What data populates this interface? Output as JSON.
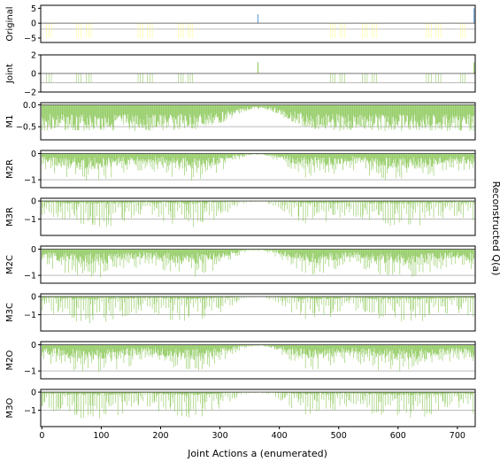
{
  "figure": {
    "xlabel": "Joint Actions a (enumerated)",
    "ylabel": "Reconstructed Q(a)",
    "xlim": [
      -2,
      730
    ],
    "xticks": [
      0,
      100,
      200,
      300,
      400,
      500,
      600,
      700
    ]
  },
  "colors": {
    "green": "#8cc85a",
    "yellow": "#ffff88",
    "blue": "#5b9bd5",
    "axis_line": "#bbbbbb"
  },
  "chart_data": [
    {
      "type": "bar",
      "ylabel": "Original",
      "ylim": [
        -6.5,
        6
      ],
      "yticks": [
        5,
        0,
        -5
      ],
      "reference_line": -2,
      "bar_color": "yellow",
      "baseline_value": 0,
      "low_value": -5,
      "low_action_groups": [
        [
          8,
          12,
          16
        ],
        [
          58,
          62,
          66
        ],
        [
          75,
          79,
          83
        ],
        [
          162,
          166,
          170
        ],
        [
          178,
          182,
          186
        ],
        [
          230,
          234,
          238
        ],
        [
          246,
          250,
          254
        ],
        [
          486,
          490,
          494
        ],
        [
          502,
          506,
          510
        ],
        [
          540,
          544,
          548
        ],
        [
          556,
          560,
          564
        ],
        [
          648,
          652,
          656
        ],
        [
          664,
          668,
          672
        ],
        [
          705,
          709,
          713
        ]
      ],
      "spikes": [
        {
          "x": 364,
          "value": 3,
          "color": "blue"
        },
        {
          "x": 728,
          "value": 5,
          "color": "blue"
        }
      ]
    },
    {
      "type": "bar",
      "ylabel": "Joint",
      "ylim": [
        -2,
        2
      ],
      "yticks": [
        2,
        0,
        -2
      ],
      "reference_line": -1,
      "bar_color": "green",
      "baseline_value": 0,
      "low_value": -1,
      "low_action_groups": [
        [
          8,
          12,
          16
        ],
        [
          58,
          62,
          66
        ],
        [
          75,
          79,
          83
        ],
        [
          162,
          166,
          170
        ],
        [
          178,
          182,
          186
        ],
        [
          230,
          234,
          238
        ],
        [
          246,
          250,
          254
        ],
        [
          486,
          490,
          494
        ],
        [
          502,
          506,
          510
        ],
        [
          540,
          544,
          548
        ],
        [
          556,
          560,
          564
        ],
        [
          648,
          652,
          656
        ],
        [
          664,
          668,
          672
        ],
        [
          705,
          709,
          713
        ]
      ],
      "spikes": [
        {
          "x": 364,
          "value": 1.2,
          "color": "green"
        },
        {
          "x": 728,
          "value": 1.2,
          "color": "green"
        }
      ]
    },
    {
      "type": "bar",
      "ylabel": "M1",
      "ylim": [
        -0.8,
        0.05
      ],
      "yticks": [
        0.0,
        -0.5
      ],
      "ytick_labels": [
        "0.0",
        "−0.5"
      ],
      "reference_line": -0.5,
      "bar_color": "green",
      "pattern": "m1",
      "amplitude": 0.6,
      "seed": 3
    },
    {
      "type": "bar",
      "ylabel": "M2R",
      "ylim": [
        -1.3,
        0.12
      ],
      "yticks": [
        0,
        -1
      ],
      "ytick_labels": [
        "0",
        "−1"
      ],
      "reference_line": -1,
      "bar_color": "green",
      "pattern": "m2",
      "amplitude": 1.1,
      "seed": 7
    },
    {
      "type": "bar",
      "ylabel": "M3R",
      "ylim": [
        -1.9,
        0.15
      ],
      "yticks": [
        0,
        -1
      ],
      "ytick_labels": [
        "0",
        "−1"
      ],
      "reference_line": -1,
      "bar_color": "green",
      "pattern": "m3",
      "amplitude": 1.5,
      "seed": 11
    },
    {
      "type": "bar",
      "ylabel": "M2C",
      "ylim": [
        -1.3,
        0.12
      ],
      "yticks": [
        0,
        -1
      ],
      "ytick_labels": [
        "0",
        "−1"
      ],
      "reference_line": -1,
      "bar_color": "green",
      "pattern": "m2",
      "amplitude": 1.1,
      "seed": 13
    },
    {
      "type": "bar",
      "ylabel": "M3C",
      "ylim": [
        -1.9,
        0.15
      ],
      "yticks": [
        0,
        -1
      ],
      "ytick_labels": [
        "0",
        "−1"
      ],
      "reference_line": -1,
      "bar_color": "green",
      "pattern": "m3",
      "amplitude": 1.5,
      "seed": 17
    },
    {
      "type": "bar",
      "ylabel": "M2O",
      "ylim": [
        -1.3,
        0.12
      ],
      "yticks": [
        0,
        -1
      ],
      "ytick_labels": [
        "0",
        "−1"
      ],
      "reference_line": -1,
      "bar_color": "green",
      "pattern": "m2",
      "amplitude": 1.1,
      "seed": 19
    },
    {
      "type": "bar",
      "ylabel": "M3O",
      "ylim": [
        -1.9,
        0.15
      ],
      "yticks": [
        0,
        -1
      ],
      "ytick_labels": [
        "0",
        "−1"
      ],
      "reference_line": -1,
      "bar_color": "green",
      "pattern": "m3",
      "amplitude": 1.5,
      "seed": 23
    }
  ]
}
